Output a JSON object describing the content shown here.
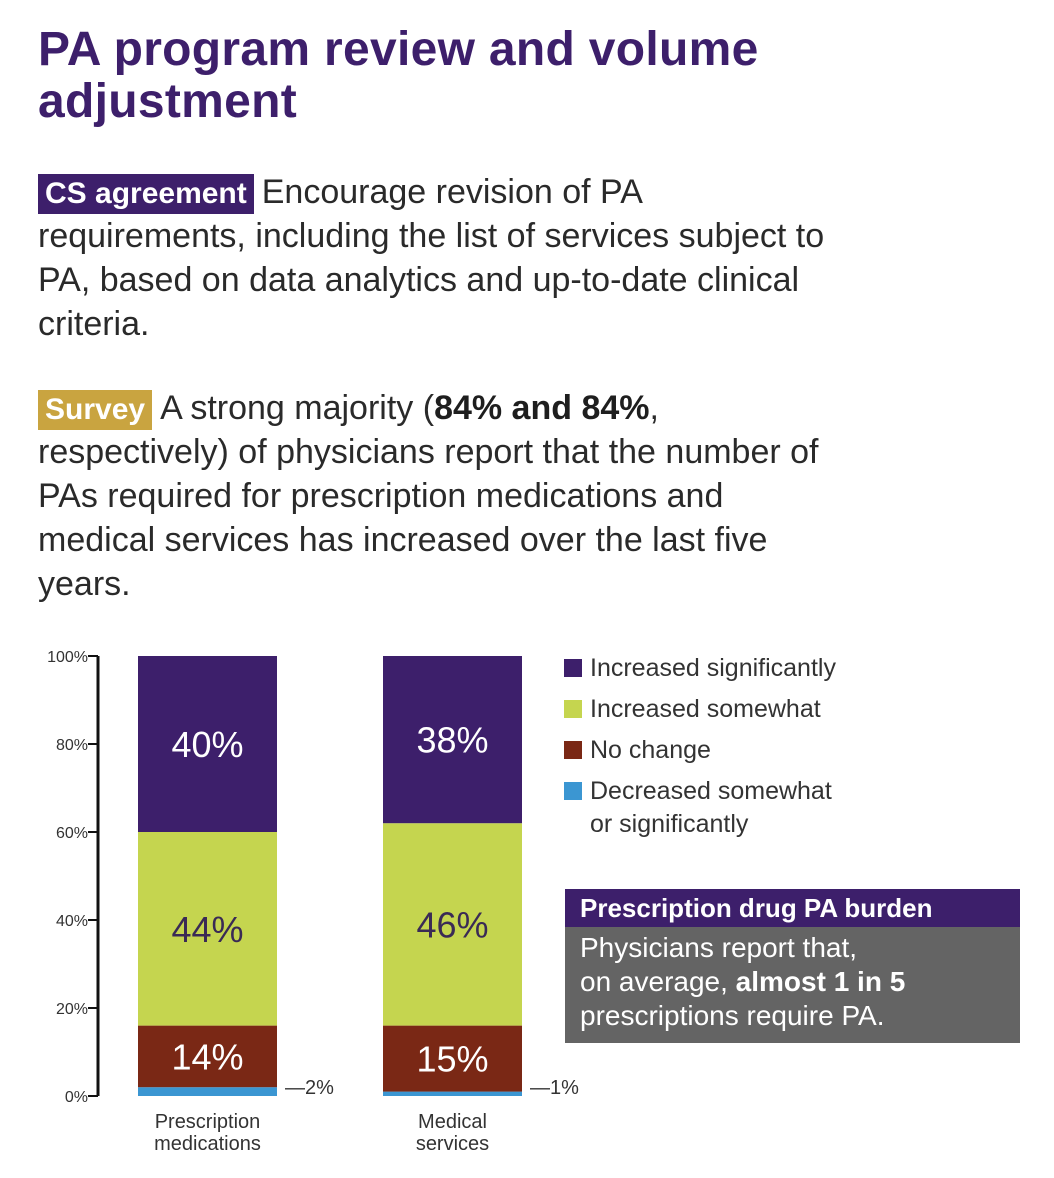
{
  "title": "PA program review and volume adjustment",
  "cs_block": {
    "tag": "CS agreement",
    "text": "Encourage revision of PA requirements, including the list of services subject to PA, based on data analytics and up-to-date clinical criteria."
  },
  "survey_block": {
    "tag": "Survey",
    "text_before": "A strong majority (",
    "bold": "84% and 84%",
    "text_after": ", respectively) of physicians report that the number of PAs required for prescription medications and medical services has increased over the last five years."
  },
  "colors": {
    "purple": "#3d1f6b",
    "green": "#c5d54f",
    "brown": "#7a2815",
    "blue": "#3b96d2",
    "gold": "#c9a440",
    "gray": "#646464"
  },
  "chart_data": {
    "type": "bar",
    "stacked": true,
    "categories": [
      "Prescription medications",
      "Medical services"
    ],
    "category_lines": [
      [
        "Prescription",
        "medications"
      ],
      [
        "Medical",
        "services"
      ]
    ],
    "ylim": [
      0,
      100
    ],
    "yticks": [
      "0%",
      "20%",
      "40%",
      "60%",
      "80%",
      "100%"
    ],
    "series": [
      {
        "name": "Decreased somewhat or significantly",
        "values": [
          2,
          1
        ],
        "labels": [
          "—2%",
          "—1%"
        ]
      },
      {
        "name": "No change",
        "values": [
          14,
          15
        ],
        "labels": [
          "14%",
          "15%"
        ]
      },
      {
        "name": "Increased somewhat",
        "values": [
          44,
          46
        ],
        "labels": [
          "44%",
          "46%"
        ]
      },
      {
        "name": "Increased significantly",
        "values": [
          40,
          38
        ],
        "labels": [
          "40%",
          "38%"
        ]
      }
    ]
  },
  "legend": [
    {
      "lines": [
        "Increased significantly"
      ],
      "color": "#3d1f6b"
    },
    {
      "lines": [
        "Increased somewhat"
      ],
      "color": "#c5d54f"
    },
    {
      "lines": [
        "No change"
      ],
      "color": "#7a2815"
    },
    {
      "lines": [
        "Decreased somewhat",
        "or significantly"
      ],
      "color": "#3b96d2"
    }
  ],
  "callout": {
    "heading": "Prescription drug PA burden",
    "line1": "Physicians report that,",
    "line2_before": "on average, ",
    "line2_bold": "almost 1 in 5",
    "line3": "prescriptions require PA."
  }
}
